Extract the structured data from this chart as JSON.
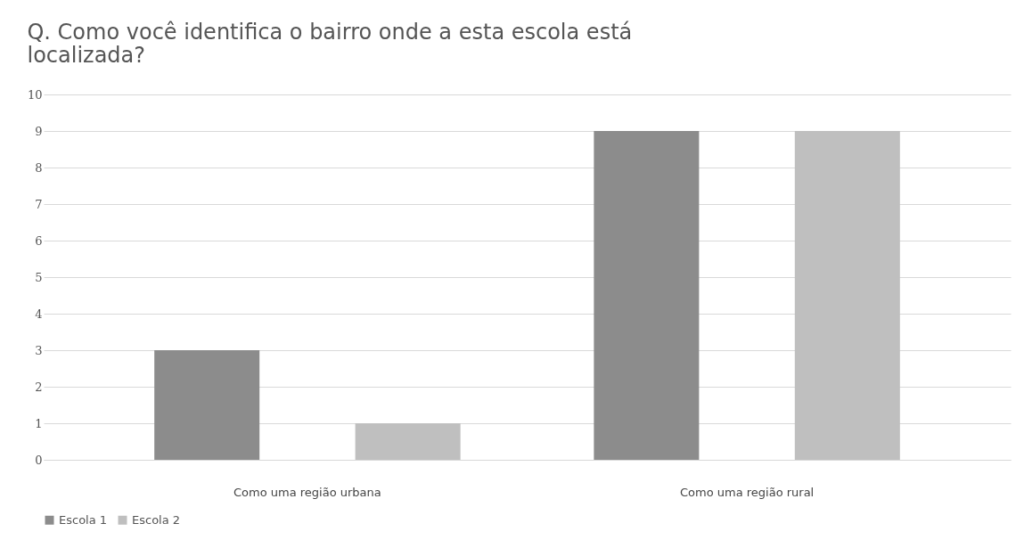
{
  "chart_data": {
    "type": "bar",
    "title": "Q. Como você identifica o bairro onde a esta escola está localizada?",
    "categories": [
      "Como uma região urbana",
      "Como uma região rural"
    ],
    "series": [
      {
        "name": "Escola 1",
        "color": "#8c8c8c",
        "values": [
          3,
          9
        ]
      },
      {
        "name": "Escola 2",
        "color": "#bfbfbf",
        "values": [
          1,
          9
        ]
      }
    ],
    "ylim": [
      0,
      10
    ],
    "yticks": [
      0,
      1,
      2,
      3,
      4,
      5,
      6,
      7,
      8,
      9,
      10
    ],
    "grid": "y",
    "legend": "bottom"
  }
}
